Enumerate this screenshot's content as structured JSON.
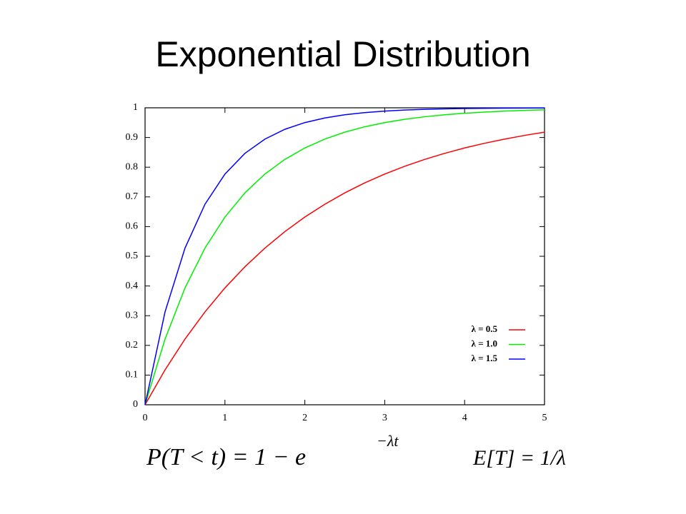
{
  "chart_data": {
    "type": "line",
    "title": "Exponential Distribution",
    "x": [
      0,
      0.25,
      0.5,
      0.75,
      1,
      1.25,
      1.5,
      1.75,
      2,
      2.25,
      2.5,
      2.75,
      3,
      3.25,
      3.5,
      3.75,
      4,
      4.25,
      4.5,
      4.75,
      5
    ],
    "series": [
      {
        "name": "λ = 0.5",
        "color": "#ff0000",
        "values": [
          0,
          0.1175,
          0.2212,
          0.3127,
          0.3935,
          0.4647,
          0.5276,
          0.5831,
          0.6321,
          0.6753,
          0.7135,
          0.7472,
          0.7769,
          0.8031,
          0.8262,
          0.8466,
          0.8647,
          0.8806,
          0.8946,
          0.907,
          0.9179
        ]
      },
      {
        "name": "λ = 1.0",
        "color": "#00ee00",
        "values": [
          0,
          0.2212,
          0.3935,
          0.5276,
          0.6321,
          0.7135,
          0.7769,
          0.8262,
          0.8647,
          0.8946,
          0.9179,
          0.9361,
          0.9502,
          0.9612,
          0.9698,
          0.9765,
          0.9817,
          0.9857,
          0.9889,
          0.9913,
          0.9933
        ]
      },
      {
        "name": "λ = 1.5",
        "color": "#0000ff",
        "values": [
          0,
          0.3127,
          0.5276,
          0.6753,
          0.7769,
          0.8466,
          0.8946,
          0.9276,
          0.9502,
          0.9658,
          0.9765,
          0.9838,
          0.9889,
          0.9924,
          0.9948,
          0.9964,
          0.9975,
          0.9983,
          0.9988,
          0.9992,
          0.9994
        ]
      }
    ],
    "xlim": [
      0,
      5
    ],
    "xticks": [
      0,
      1,
      2,
      3,
      4,
      5
    ],
    "ylim": [
      0,
      1
    ],
    "yticks": [
      0,
      0.1,
      0.2,
      0.3,
      0.4,
      0.5,
      0.6,
      0.7,
      0.8,
      0.9,
      1
    ],
    "legend": "lower right",
    "annotations": [
      "P(T < t) = 1 − e",
      "−λt",
      "E[T] = 1/λ"
    ]
  }
}
